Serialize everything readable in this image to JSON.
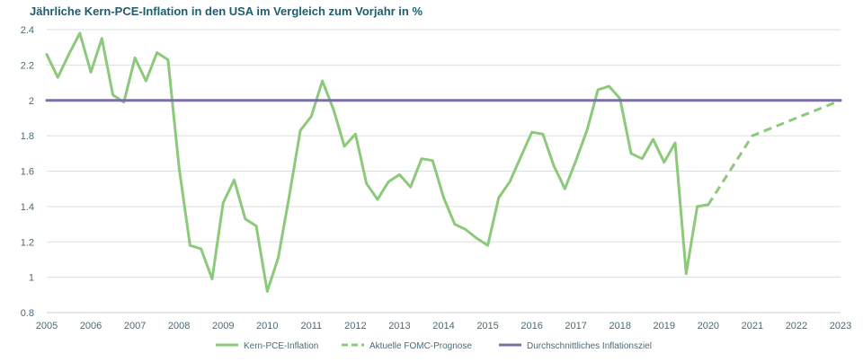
{
  "chart_data": {
    "type": "line",
    "title": "Jährliche Kern-PCE-Inflation in den USA im Vergleich zum Vorjahr in %",
    "xlabel": "",
    "ylabel": "",
    "xlim": [
      2005,
      2023
    ],
    "ylim": [
      0.8,
      2.4
    ],
    "y_ticks": [
      0.8,
      1,
      1.2,
      1.4,
      1.6,
      1.8,
      2,
      2.2,
      2.4
    ],
    "y_tick_labels": [
      "0.8",
      "1",
      "1.2",
      "1.4",
      "1.6",
      "1.8",
      "2",
      "2.2",
      "2.4"
    ],
    "x_ticks": [
      2005,
      2006,
      2007,
      2008,
      2009,
      2010,
      2011,
      2012,
      2013,
      2014,
      2015,
      2016,
      2017,
      2018,
      2019,
      2020,
      2021,
      2022,
      2023
    ],
    "x_tick_labels": [
      "2005",
      "2006",
      "2007",
      "2008",
      "2009",
      "2010",
      "2011",
      "2012",
      "2013",
      "2014",
      "2015",
      "2016",
      "2017",
      "2018",
      "2019",
      "2020",
      "2021",
      "2022",
      "2023"
    ],
    "grid": "horizontal",
    "legend_position": "bottom",
    "series": [
      {
        "name": "Kern-PCE-Inflation",
        "style": "solid",
        "color": "#8cc97a",
        "x": [
          2005.0,
          2005.25,
          2005.5,
          2005.75,
          2006.0,
          2006.25,
          2006.5,
          2006.75,
          2007.0,
          2007.25,
          2007.5,
          2007.75,
          2008.0,
          2008.25,
          2008.5,
          2008.75,
          2009.0,
          2009.25,
          2009.5,
          2009.75,
          2010.0,
          2010.25,
          2010.5,
          2010.75,
          2011.0,
          2011.25,
          2011.5,
          2011.75,
          2012.0,
          2012.25,
          2012.5,
          2012.75,
          2013.0,
          2013.25,
          2013.5,
          2013.75,
          2014.0,
          2014.25,
          2014.5,
          2014.75,
          2015.0,
          2015.25,
          2015.5,
          2015.75,
          2016.0,
          2016.25,
          2016.5,
          2016.75,
          2017.0,
          2017.25,
          2017.5,
          2017.75,
          2018.0,
          2018.25,
          2018.5,
          2018.75,
          2019.0,
          2019.25,
          2019.5,
          2019.75,
          2020.0
        ],
        "values": [
          2.26,
          2.13,
          2.26,
          2.38,
          2.16,
          2.35,
          2.03,
          1.99,
          2.24,
          2.11,
          2.27,
          2.23,
          1.62,
          1.18,
          1.16,
          0.99,
          1.42,
          1.55,
          1.33,
          1.29,
          0.92,
          1.11,
          1.46,
          1.83,
          1.91,
          2.11,
          1.95,
          1.74,
          1.81,
          1.53,
          1.44,
          1.54,
          1.58,
          1.51,
          1.67,
          1.66,
          1.45,
          1.3,
          1.27,
          1.22,
          1.18,
          1.45,
          1.54,
          1.68,
          1.82,
          1.81,
          1.63,
          1.5,
          1.66,
          1.83,
          2.06,
          2.08,
          2.01,
          1.7,
          1.67,
          1.78,
          1.65,
          1.76,
          1.02,
          1.4,
          1.41
        ]
      },
      {
        "name": "Aktuelle FOMC-Prognose",
        "style": "dashed",
        "color": "#8cc97a",
        "x": [
          2020.0,
          2021.0,
          2022.0,
          2023.0
        ],
        "values": [
          1.41,
          1.8,
          1.9,
          2.0
        ]
      },
      {
        "name": "Durchschnittliches Inflationsziel",
        "style": "solid",
        "color": "#7b6fa8",
        "x": [
          2005.0,
          2023.0
        ],
        "values": [
          2.0,
          2.0
        ]
      }
    ]
  }
}
